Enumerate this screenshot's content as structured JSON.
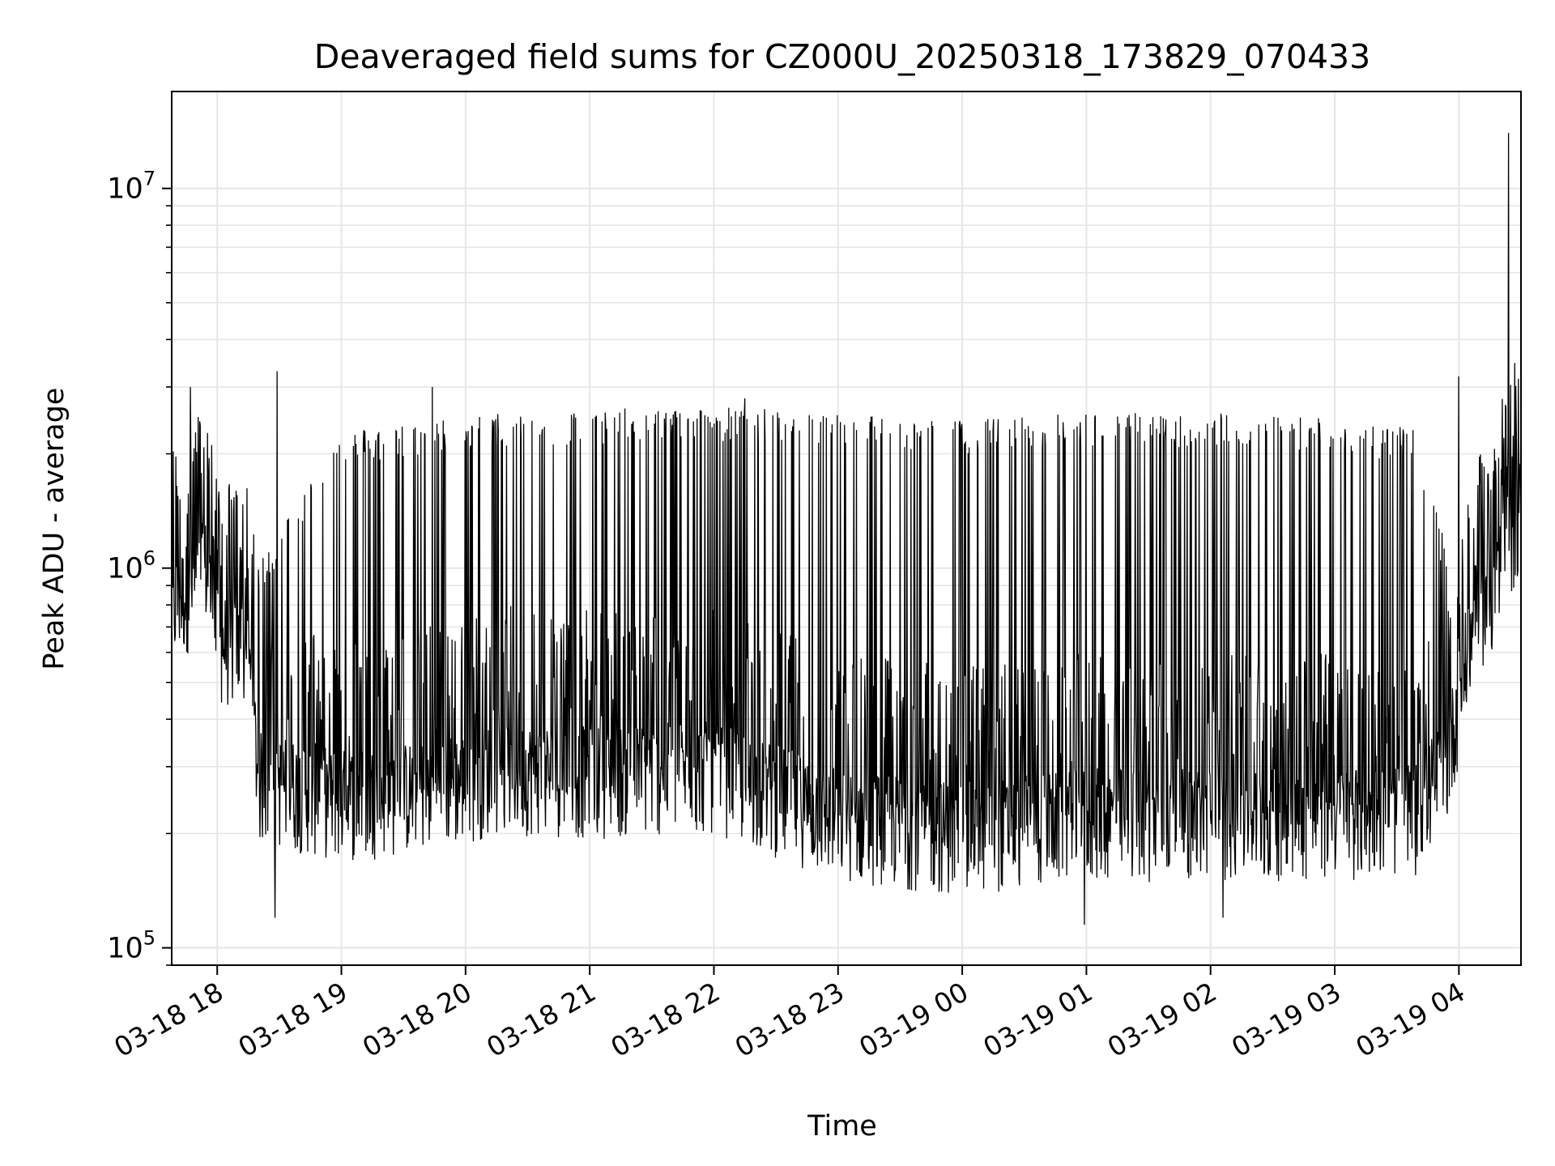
{
  "chart_data": {
    "type": "line",
    "title": "Deaveraged field sums for CZ000U_20250318_173829_070433",
    "xlabel": "Time",
    "ylabel": "Peak ADU - average",
    "yscale": "log",
    "ylim": [
      90000,
      18000000
    ],
    "xlim": [
      "2025-03-18T17:38:00",
      "2025-03-19T04:30:00"
    ],
    "grid": true,
    "line_color": "#000000",
    "grid_color": "#e6e6e6",
    "x_ticks": [
      {
        "value": "2025-03-18T18:00:00",
        "label": "03-18 18"
      },
      {
        "value": "2025-03-18T19:00:00",
        "label": "03-18 19"
      },
      {
        "value": "2025-03-18T20:00:00",
        "label": "03-18 20"
      },
      {
        "value": "2025-03-18T21:00:00",
        "label": "03-18 21"
      },
      {
        "value": "2025-03-18T22:00:00",
        "label": "03-18 22"
      },
      {
        "value": "2025-03-18T23:00:00",
        "label": "03-18 23"
      },
      {
        "value": "2025-03-19T00:00:00",
        "label": "03-19 00"
      },
      {
        "value": "2025-03-19T01:00:00",
        "label": "03-19 01"
      },
      {
        "value": "2025-03-19T02:00:00",
        "label": "03-19 02"
      },
      {
        "value": "2025-03-19T03:00:00",
        "label": "03-19 03"
      },
      {
        "value": "2025-03-19T04:00:00",
        "label": "03-19 04"
      }
    ],
    "y_major_ticks": [
      {
        "value": 100000,
        "base": "10",
        "exp": "5"
      },
      {
        "value": 1000000,
        "base": "10",
        "exp": "6"
      },
      {
        "value": 10000000,
        "base": "10",
        "exp": "7"
      }
    ],
    "series": [
      {
        "color": "#000000",
        "profile": [
          {
            "t": "2025-03-18T17:38:00",
            "base": 850000,
            "spike": 1200000
          },
          {
            "t": "2025-03-18T17:55:00",
            "base": 1100000,
            "spike": 2600000
          },
          {
            "t": "2025-03-18T18:00:00",
            "base": 700000,
            "spike": 1000000
          },
          {
            "t": "2025-03-18T18:15:00",
            "base": 650000,
            "spike": 1400000
          },
          {
            "t": "2025-03-18T18:20:00",
            "base": 300000,
            "spike": 1000000
          },
          {
            "t": "2025-03-18T19:00:00",
            "base": 270000,
            "spike": 2200000
          },
          {
            "t": "2025-03-18T19:30:00",
            "base": 280000,
            "spike": 2300000
          },
          {
            "t": "2025-03-18T20:00:00",
            "base": 300000,
            "spike": 2400000
          },
          {
            "t": "2025-03-18T20:15:00",
            "base": 320000,
            "spike": 2450000
          },
          {
            "t": "2025-03-18T21:00:00",
            "base": 310000,
            "spike": 2500000
          },
          {
            "t": "2025-03-18T22:00:00",
            "base": 320000,
            "spike": 2550000
          },
          {
            "t": "2025-03-18T23:00:00",
            "base": 240000,
            "spike": 2450000
          },
          {
            "t": "2025-03-19T00:00:00",
            "base": 220000,
            "spike": 2350000
          },
          {
            "t": "2025-03-19T01:00:00",
            "base": 240000,
            "spike": 2450000
          },
          {
            "t": "2025-03-19T02:00:00",
            "base": 240000,
            "spike": 2450000
          },
          {
            "t": "2025-03-19T03:00:00",
            "base": 240000,
            "spike": 2400000
          },
          {
            "t": "2025-03-19T03:40:00",
            "base": 250000,
            "spike": 2200000
          },
          {
            "t": "2025-03-19T03:55:00",
            "base": 350000,
            "spike": 1000000
          },
          {
            "t": "2025-03-19T04:05:00",
            "base": 700000,
            "spike": 1100000
          },
          {
            "t": "2025-03-19T04:15:00",
            "base": 900000,
            "spike": 1200000
          },
          {
            "t": "2025-03-19T04:30:00",
            "base": 1600000,
            "spike": 2200000
          }
        ],
        "peaks": [
          {
            "t": "2025-03-18T17:47:00",
            "value": 3000000
          },
          {
            "t": "2025-03-18T18:25:00",
            "value": 1100000
          },
          {
            "t": "2025-03-18T18:29:00",
            "value": 3300000
          },
          {
            "t": "2025-03-18T18:28:00",
            "value": 120000
          },
          {
            "t": "2025-03-18T19:44:00",
            "value": 3000000
          },
          {
            "t": "2025-03-18T22:15:00",
            "value": 2800000
          },
          {
            "t": "2025-03-19T00:59:00",
            "value": 115000
          },
          {
            "t": "2025-03-19T02:06:00",
            "value": 120000
          },
          {
            "t": "2025-03-19T04:00:00",
            "value": 3200000
          },
          {
            "t": "2025-03-19T04:24:00",
            "value": 14000000
          }
        ]
      }
    ]
  }
}
